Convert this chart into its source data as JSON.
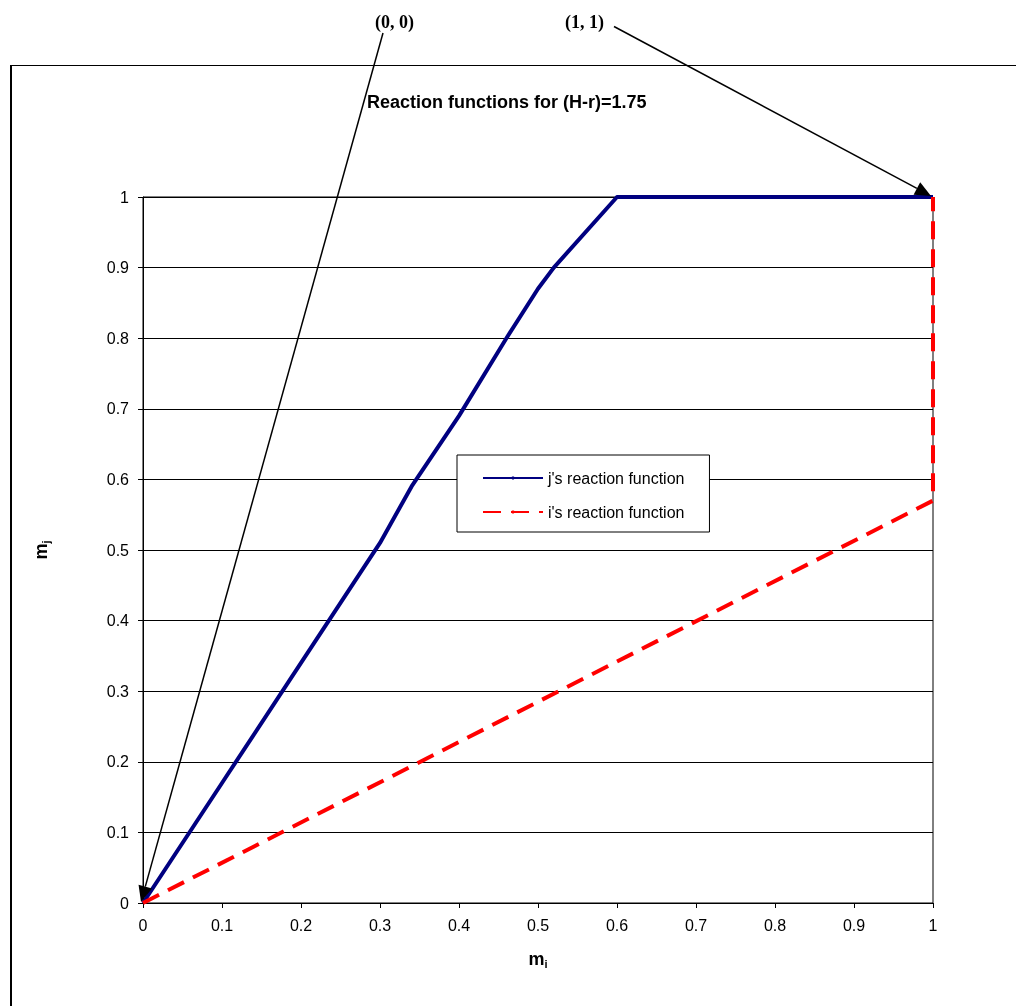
{
  "chart_data": {
    "type": "line",
    "title": "Reaction functions for (H-r)=1.75",
    "xlabel": "m$_{i}$",
    "ylabel": "m$_{j}$",
    "series": [
      {
        "name": "j's reaction function",
        "color": "#000080",
        "line_style": "solid",
        "x": [
          0,
          0.1,
          0.2,
          0.3,
          0.34,
          0.4,
          0.46,
          0.5,
          0.52,
          0.6,
          1
        ],
        "values": [
          0,
          0.17,
          0.34,
          0.51,
          0.59,
          0.69,
          0.8,
          0.87,
          0.9,
          1,
          1
        ]
      },
      {
        "name": "i's reaction function",
        "color": "#ff0000",
        "line_style": "dashed",
        "x": [
          0,
          0.5,
          1,
          1
        ],
        "values": [
          0,
          0.285,
          0.57,
          1
        ]
      }
    ],
    "xlim": [
      0,
      1
    ],
    "ylim": [
      0,
      1
    ],
    "xticks": [
      0,
      0.1,
      0.2,
      0.3,
      0.4,
      0.5,
      0.6,
      0.7,
      0.8,
      0.9,
      1
    ],
    "yticks": [
      0,
      0.1,
      0.2,
      0.3,
      0.4,
      0.5,
      0.6,
      0.7,
      0.8,
      0.9,
      1
    ],
    "annotations": [
      "(0, 0)",
      "(1, 1)"
    ],
    "grid": "y",
    "legend": "right",
    "marker": "none"
  }
}
